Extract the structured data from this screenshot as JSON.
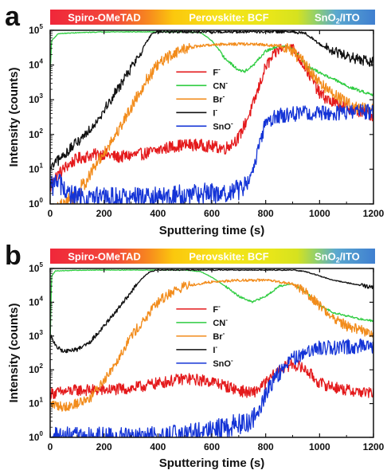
{
  "chart_data": [
    {
      "panel": "a",
      "type": "line",
      "xlabel": "Sputtering time (s)",
      "ylabel": "Intensity (counts)",
      "xlim": [
        0,
        1200
      ],
      "ylim_log10": [
        0,
        5
      ],
      "x_ticks": [
        0,
        200,
        400,
        600,
        800,
        1000,
        1200
      ],
      "y_ticks": [
        {
          "base": "10",
          "exp": "0"
        },
        {
          "base": "10",
          "exp": "1"
        },
        {
          "base": "10",
          "exp": "2"
        },
        {
          "base": "10",
          "exp": "3"
        },
        {
          "base": "10",
          "exp": "4"
        },
        {
          "base": "10",
          "exp": "5"
        }
      ],
      "y_scale": "log",
      "legend_position": "center",
      "bands": [
        {
          "label": "Spiro-OMeTAD",
          "sub": "",
          "x_start": 0,
          "x_end": 400
        },
        {
          "label": "Perovskite: BCF",
          "sub": "",
          "x_start": 400,
          "x_end": 920
        },
        {
          "label": "SnO",
          "sub": "2",
          "suffix": "/ITO",
          "x_start": 920,
          "x_end": 1200
        }
      ],
      "series": [
        {
          "name": "F",
          "sup": "-",
          "color": "#e41a1c",
          "noise": 0.35,
          "x": [
            0,
            20,
            60,
            100,
            150,
            200,
            250,
            300,
            350,
            400,
            450,
            500,
            550,
            600,
            650,
            700,
            750,
            800,
            850,
            880,
            900,
            950,
            1000,
            1050,
            1100,
            1150,
            1200
          ],
          "y": [
            3,
            6,
            12,
            20,
            25,
            28,
            22,
            25,
            28,
            35,
            45,
            50,
            50,
            45,
            40,
            80,
            600,
            9000,
            30000,
            35000,
            30000,
            8000,
            1500,
            800,
            600,
            450,
            350
          ]
        },
        {
          "name": "CN",
          "sup": "-",
          "color": "#2ecc40",
          "noise": 0.08,
          "x": [
            0,
            5,
            30,
            100,
            200,
            300,
            400,
            500,
            560,
            600,
            650,
            700,
            720,
            750,
            800,
            850,
            880,
            920,
            950,
            1000,
            1050,
            1100,
            1150,
            1200
          ],
          "y": [
            6000,
            50000,
            80000,
            85000,
            90000,
            90000,
            90000,
            90000,
            85000,
            50000,
            15000,
            7000,
            6500,
            9000,
            25000,
            35000,
            35000,
            20000,
            10000,
            6000,
            4000,
            2500,
            1800,
            1400
          ]
        },
        {
          "name": "Br",
          "sup": "-",
          "color": "#f28c1c",
          "noise": 0.35,
          "x": [
            0,
            60,
            100,
            130,
            160,
            200,
            250,
            300,
            350,
            400,
            450,
            500,
            550,
            600,
            650,
            700,
            750,
            800,
            850,
            900,
            950,
            1000,
            1050,
            1100,
            1150,
            1200
          ],
          "y": [
            0.5,
            1,
            2,
            4,
            10,
            30,
            120,
            600,
            3000,
            10000,
            20000,
            30000,
            35000,
            38000,
            40000,
            40000,
            40000,
            38000,
            35000,
            25000,
            10000,
            3000,
            1500,
            800,
            600,
            500
          ]
        },
        {
          "name": "I",
          "sup": "-",
          "color": "#111111",
          "noise": 0.3,
          "x": [
            0,
            20,
            50,
            100,
            150,
            200,
            250,
            300,
            330,
            360,
            380,
            400,
            500,
            600,
            700,
            800,
            900,
            950,
            1000,
            1050,
            1100,
            1150,
            1200
          ],
          "y": [
            10,
            15,
            25,
            60,
            150,
            500,
            2000,
            8000,
            20000,
            50000,
            80000,
            90000,
            90000,
            90000,
            90000,
            90000,
            90000,
            80000,
            40000,
            25000,
            18000,
            14000,
            12000
          ]
        },
        {
          "name": "SnO",
          "sup": "-",
          "color": "#1434d6",
          "noise": 0.45,
          "x": [
            0,
            30,
            60,
            100,
            200,
            300,
            400,
            500,
            600,
            650,
            700,
            720,
            740,
            760,
            780,
            800,
            850,
            900,
            950,
            1000,
            1100,
            1200
          ],
          "y": [
            3,
            5,
            2,
            1.5,
            1.5,
            1.5,
            1.5,
            1.8,
            2,
            2,
            2.5,
            3,
            5,
            15,
            60,
            250,
            350,
            400,
            400,
            420,
            430,
            450
          ]
        }
      ]
    },
    {
      "panel": "b",
      "type": "line",
      "xlabel": "Sputtering time (s)",
      "ylabel": "Intensity (counts)",
      "xlim": [
        0,
        1200
      ],
      "ylim_log10": [
        0,
        5
      ],
      "x_ticks": [
        0,
        200,
        400,
        600,
        800,
        1000,
        1200
      ],
      "y_ticks": [
        {
          "base": "10",
          "exp": "0"
        },
        {
          "base": "10",
          "exp": "1"
        },
        {
          "base": "10",
          "exp": "2"
        },
        {
          "base": "10",
          "exp": "3"
        },
        {
          "base": "10",
          "exp": "4"
        },
        {
          "base": "10",
          "exp": "5"
        }
      ],
      "y_scale": "log",
      "legend_position": "center",
      "bands": [
        {
          "label": "Spiro-OMeTAD",
          "sub": "",
          "x_start": 0,
          "x_end": 400
        },
        {
          "label": "Perovskite: BCF",
          "sub": "",
          "x_start": 400,
          "x_end": 920
        },
        {
          "label": "SnO",
          "sub": "2",
          "suffix": "/ITO",
          "x_start": 920,
          "x_end": 1200
        }
      ],
      "series": [
        {
          "name": "F",
          "sup": "-",
          "color": "#e41a1c",
          "noise": 0.35,
          "x": [
            0,
            50,
            100,
            200,
            300,
            400,
            500,
            600,
            700,
            750,
            800,
            850,
            900,
            950,
            1000,
            1100,
            1200
          ],
          "y": [
            20,
            22,
            25,
            25,
            28,
            40,
            55,
            45,
            25,
            20,
            40,
            100,
            150,
            100,
            40,
            25,
            20
          ]
        },
        {
          "name": "CN",
          "sup": "-",
          "color": "#2ecc40",
          "noise": 0.06,
          "x": [
            0,
            5,
            20,
            100,
            200,
            300,
            400,
            500,
            560,
            600,
            650,
            700,
            750,
            800,
            850,
            900,
            950,
            1000,
            1050,
            1100,
            1150,
            1200
          ],
          "y": [
            500,
            60000,
            85000,
            88000,
            90000,
            90000,
            90000,
            90000,
            80000,
            55000,
            30000,
            15000,
            10000,
            15000,
            30000,
            35000,
            20000,
            8000,
            5000,
            4000,
            3200,
            2800
          ]
        },
        {
          "name": "Br",
          "sup": "-",
          "color": "#f28c1c",
          "noise": 0.3,
          "x": [
            0,
            50,
            100,
            150,
            200,
            250,
            300,
            350,
            400,
            450,
            500,
            550,
            600,
            700,
            800,
            850,
            900,
            950,
            1000,
            1050,
            1100,
            1150,
            1200
          ],
          "y": [
            10,
            8,
            10,
            15,
            50,
            200,
            1000,
            3000,
            10000,
            20000,
            30000,
            35000,
            40000,
            45000,
            45000,
            40000,
            35000,
            20000,
            8000,
            3500,
            2000,
            1500,
            1200
          ]
        },
        {
          "name": "I",
          "sup": "-",
          "color": "#111111",
          "noise": 0.12,
          "x": [
            0,
            5,
            20,
            50,
            100,
            150,
            200,
            250,
            300,
            340,
            370,
            400,
            500,
            600,
            700,
            800,
            900,
            950,
            1000,
            1050,
            1100,
            1150,
            1200
          ],
          "y": [
            800,
            1000,
            500,
            350,
            400,
            700,
            2000,
            6000,
            20000,
            50000,
            80000,
            90000,
            90000,
            90000,
            90000,
            90000,
            90000,
            80000,
            60000,
            45000,
            38000,
            32000,
            28000
          ]
        },
        {
          "name": "SnO",
          "sup": "-",
          "color": "#1434d6",
          "noise": 0.45,
          "x": [
            0,
            50,
            100,
            200,
            300,
            400,
            500,
            600,
            650,
            700,
            750,
            780,
            800,
            850,
            900,
            950,
            1000,
            1100,
            1200
          ],
          "y": [
            1,
            1,
            1,
            1,
            1,
            1,
            1.2,
            1.5,
            2,
            2.5,
            3,
            8,
            20,
            80,
            200,
            350,
            450,
            480,
            500
          ]
        }
      ]
    }
  ]
}
